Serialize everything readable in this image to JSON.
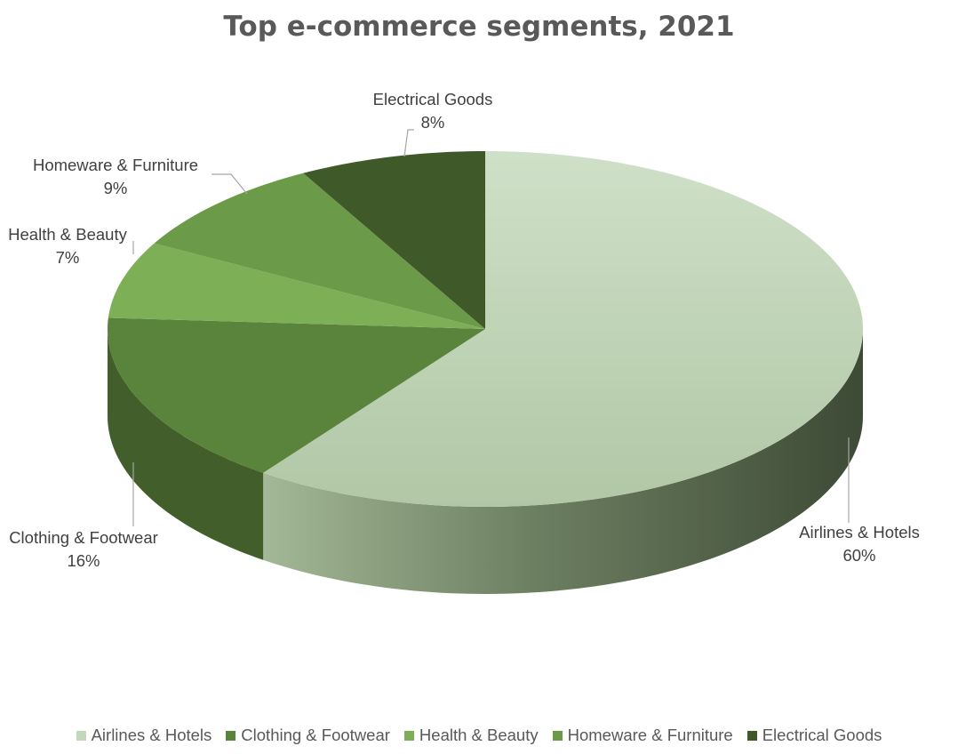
{
  "chart_data": {
    "type": "pie",
    "title": "Top e-commerce segments, 2021",
    "categories": [
      "Airlines & Hotels",
      "Clothing & Footwear",
      "Health & Beauty",
      "Homeware & Furniture",
      "Electrical Goods"
    ],
    "values": [
      60,
      16,
      7,
      9,
      8
    ],
    "value_labels": [
      "60%",
      "16%",
      "7%",
      "9%",
      "8%"
    ],
    "colors": [
      "#c3d7bb",
      "#5a833c",
      "#7db056",
      "#6b9a48",
      "#3f5a28"
    ],
    "legend_position": "bottom",
    "style": "3d"
  }
}
